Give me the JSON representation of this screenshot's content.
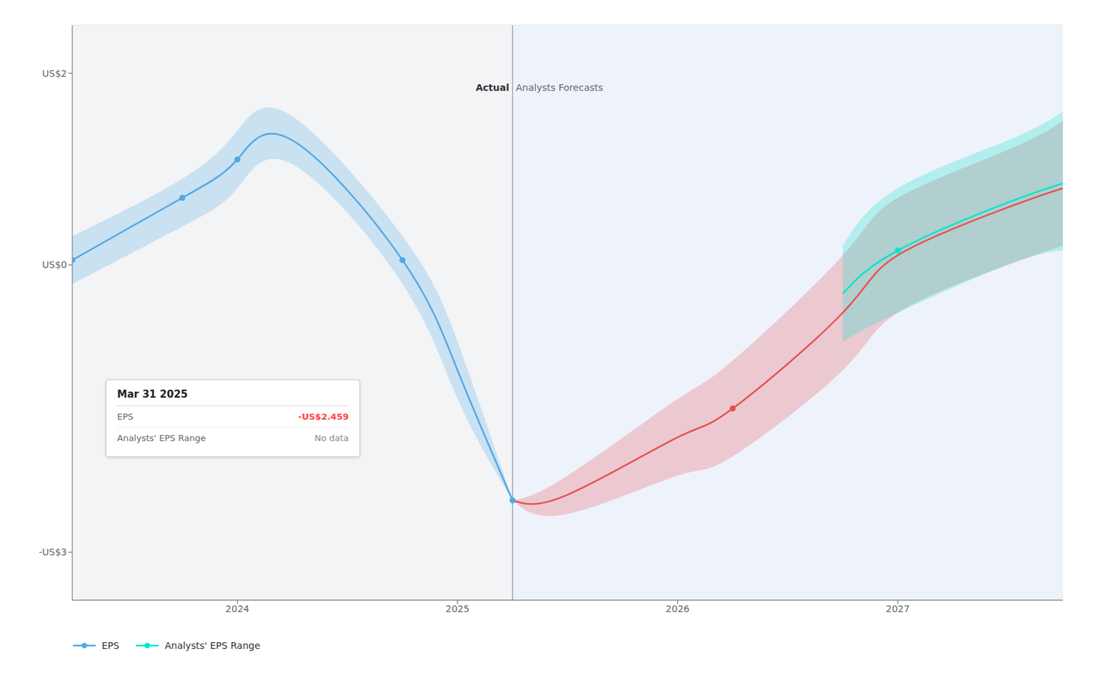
{
  "chart_data": {
    "type": "line",
    "xlim": [
      2023.25,
      2027.75
    ],
    "xticks": [
      2024,
      2025,
      2026,
      2027
    ],
    "ylim": [
      -3.5,
      2.5
    ],
    "yticks": [
      {
        "value": -3,
        "label": "-US$3"
      },
      {
        "value": 0,
        "label": "US$0"
      },
      {
        "value": 2,
        "label": "US$2"
      }
    ],
    "grid": true,
    "legend": "lower left",
    "divider": 2025.25,
    "series": [
      {
        "name": "EPS",
        "color": "#4fa8e8",
        "x": [
          2023.25,
          2023.75,
          2024.0,
          2024.25,
          2024.75,
          2025.0,
          2025.25
        ],
        "values": [
          0.05,
          0.7,
          1.1,
          1.3,
          0.05,
          -1.1,
          -2.459
        ],
        "band_upper": [
          0.3,
          0.9,
          1.4,
          1.55,
          0.3,
          -0.8,
          -2.459
        ],
        "band_lower": [
          -0.2,
          0.4,
          0.8,
          1.05,
          -0.2,
          -1.4,
          -2.459
        ],
        "marker_x": [
          2023.25,
          2023.75,
          2024.0,
          2024.75,
          2025.25
        ],
        "marker_y": [
          0.05,
          0.7,
          1.1,
          0.05,
          -2.459
        ]
      },
      {
        "color": "#e85050",
        "x": [
          2025.25,
          2025.5,
          2026.0,
          2026.25,
          2026.75,
          2027.0,
          2027.5,
          2027.75
        ],
        "values": [
          -2.459,
          -2.4,
          -1.8,
          -1.5,
          -0.5,
          0.1,
          0.6,
          0.8
        ],
        "band_upper": [
          -2.459,
          -2.2,
          -1.4,
          -1.0,
          0.1,
          0.7,
          1.2,
          1.5
        ],
        "band_lower": [
          -2.459,
          -2.6,
          -2.2,
          -2.0,
          -1.1,
          -0.5,
          0.0,
          0.2
        ],
        "marker_x": [
          2026.25
        ],
        "marker_y": [
          -1.5
        ]
      },
      {
        "name": "Analysts' EPS Range",
        "color": "#00e5c8",
        "x": [
          2026.75,
          2027.0,
          2027.5,
          2027.75
        ],
        "values": [
          -0.3,
          0.15,
          0.65,
          0.85
        ],
        "band_upper": [
          0.2,
          0.8,
          1.3,
          1.6
        ],
        "band_lower": [
          -0.8,
          -0.5,
          0.0,
          0.15
        ],
        "marker_x": [
          2027.0
        ],
        "marker_y": [
          0.15
        ]
      }
    ],
    "annotations": [
      {
        "text": "Actual",
        "x": 2025.25,
        "y": 1.85
      },
      {
        "text": "Analysts Forecasts",
        "x": 2025.25,
        "y": 1.85
      }
    ],
    "tooltip": {
      "title": "Mar 31 2025",
      "rows": [
        {
          "label": "EPS",
          "value": "-US$2.459",
          "color": "#ff4444"
        },
        {
          "label": "Analysts' EPS Range",
          "value": "No data"
        }
      ]
    }
  }
}
